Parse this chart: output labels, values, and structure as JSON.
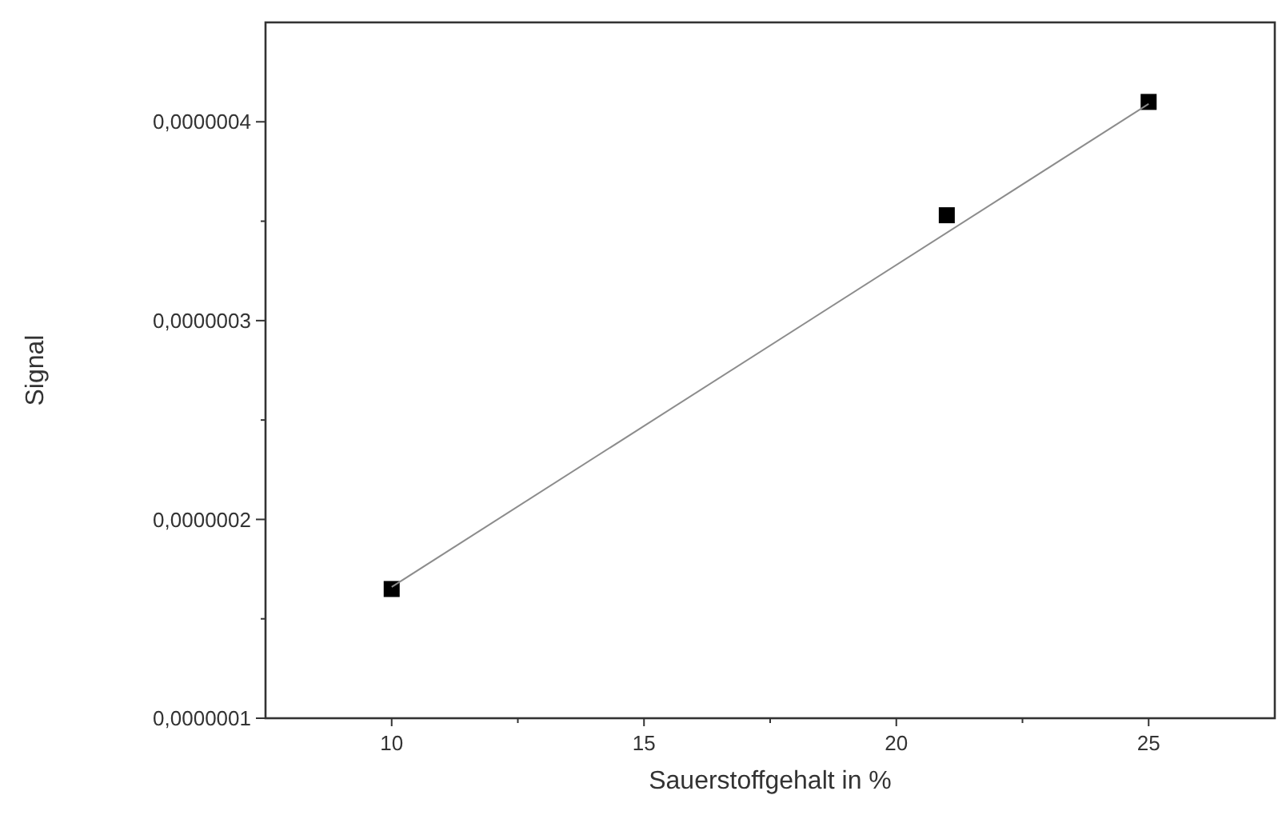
{
  "chart_data": {
    "type": "scatter",
    "xlabel": "Sauerstoffgehalt in %",
    "ylabel": "Signal",
    "marker": "square",
    "grid": false,
    "xlim": [
      7.5,
      27.5
    ],
    "ylim": [
      1e-07,
      4.5e-07
    ],
    "xticks": [
      10,
      {
        "value": 12.5,
        "label": null
      },
      15,
      {
        "value": 17.5,
        "label": null
      },
      20,
      {
        "value": 22.5,
        "label": null
      },
      25
    ],
    "yticks": [
      {
        "value": 1e-07,
        "label": "0,0000001"
      },
      {
        "value": 1.5e-07,
        "label": null
      },
      {
        "value": 2e-07,
        "label": "0,0000002"
      },
      {
        "value": 2.5e-07,
        "label": null
      },
      {
        "value": 3e-07,
        "label": "0,0000003"
      },
      {
        "value": 3.5e-07,
        "label": null
      },
      {
        "value": 4e-07,
        "label": "0,0000004"
      }
    ],
    "series": [
      {
        "color": "#000000",
        "x": [
          10,
          21,
          25
        ],
        "values": [
          1.65e-07,
          3.53e-07,
          4.1e-07
        ]
      },
      {
        "type": "line",
        "color": "#8c8c8c",
        "marker": "none",
        "line_style": "solid",
        "x": [
          10,
          25
        ],
        "values": [
          1.66e-07,
          4.09e-07
        ]
      }
    ]
  }
}
